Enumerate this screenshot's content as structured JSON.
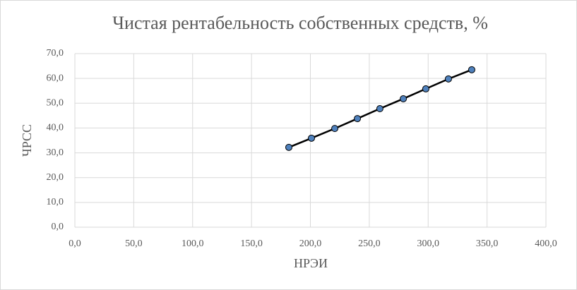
{
  "chart_data": {
    "type": "scatter",
    "title": "Чистая рентабельность собственных средств, %",
    "x_label": "НРЭИ",
    "y_label": "ЧРСС",
    "series": [
      {
        "color": "#4f81bd",
        "line_color": "#000000",
        "x": [
          181.7,
          200.9,
          220.7,
          239.9,
          259.0,
          278.9,
          298.0,
          317.2,
          337.0
        ],
        "values": [
          32.2,
          35.9,
          39.8,
          43.8,
          47.8,
          51.8,
          55.8,
          59.8,
          63.5
        ]
      }
    ],
    "xlim": [
      0,
      400
    ],
    "xticks": [
      {
        "value": 0,
        "label": "0,0"
      },
      {
        "value": 50,
        "label": "50,0"
      },
      {
        "value": 100,
        "label": "100,0"
      },
      {
        "value": 150,
        "label": "150,0"
      },
      {
        "value": 200,
        "label": "200,0"
      },
      {
        "value": 250,
        "label": "250,0"
      },
      {
        "value": 300,
        "label": "300,0"
      },
      {
        "value": 350,
        "label": "350,0"
      },
      {
        "value": 400,
        "label": "400,0"
      }
    ],
    "ylim": [
      0,
      70
    ],
    "yticks": [
      {
        "value": 0,
        "label": "0,0"
      },
      {
        "value": 10,
        "label": "10,0"
      },
      {
        "value": 20,
        "label": "20,0"
      },
      {
        "value": 30,
        "label": "30,0"
      },
      {
        "value": 40,
        "label": "40,0"
      },
      {
        "value": 50,
        "label": "50,0"
      },
      {
        "value": 60,
        "label": "60,0"
      },
      {
        "value": 70,
        "label": "70,0"
      }
    ],
    "grid": true
  }
}
